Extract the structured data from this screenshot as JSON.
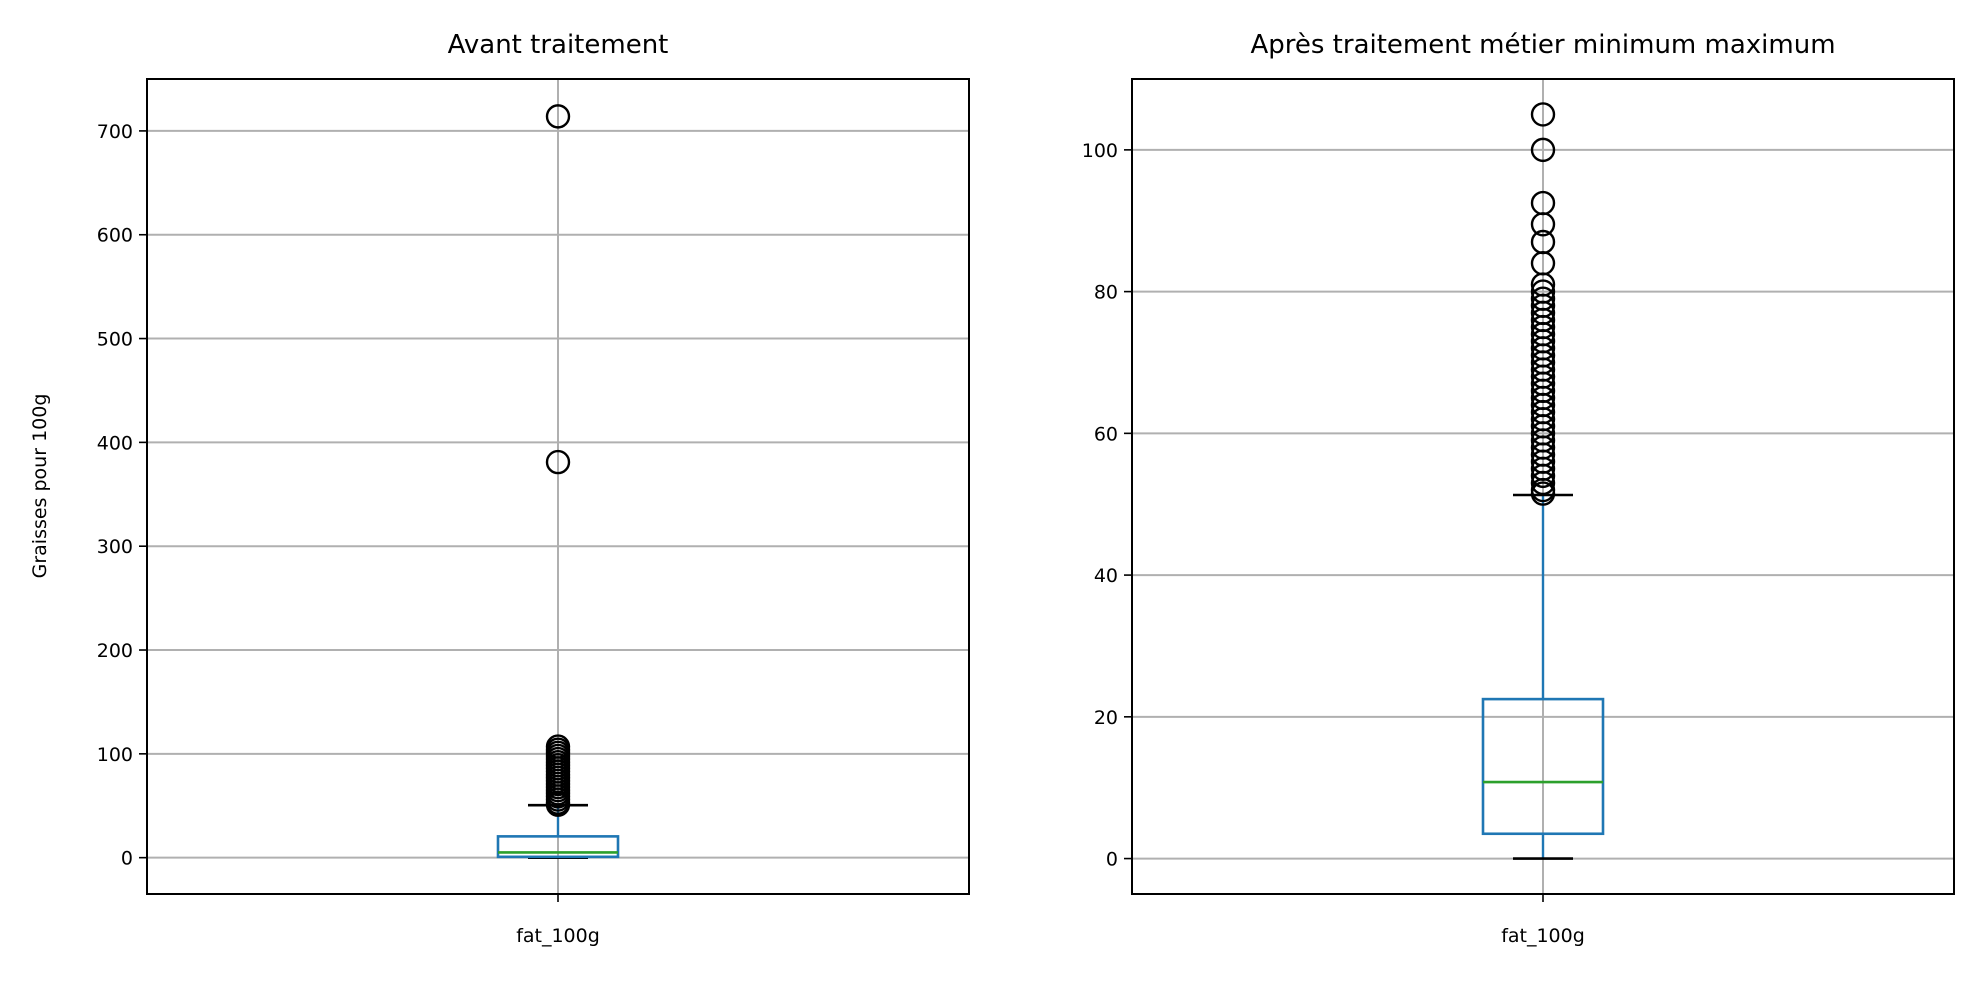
{
  "chart_data": [
    {
      "type": "box",
      "title": "Avant traitement",
      "xlabel": "",
      "ylabel": "Graisses pour 100g",
      "categories": [
        "fat_100g"
      ],
      "ylim": [
        -35,
        750
      ],
      "yticks": [
        0,
        100,
        200,
        300,
        400,
        500,
        600,
        700
      ],
      "grid": true,
      "box": {
        "whisker_low": 0,
        "q1": 0.8,
        "median": 5,
        "q3": 20.5,
        "whisker_high": 50.5
      },
      "outliers": [
        714,
        381,
        107,
        104,
        101,
        98,
        95,
        92,
        89,
        86,
        83,
        80,
        77,
        74,
        71,
        68,
        65,
        62,
        59,
        56,
        53,
        51
      ],
      "colors": {
        "box": "#1f77b4",
        "median": "#2ca02c",
        "caps": "#000000",
        "grid": "#b0b0b0"
      }
    },
    {
      "type": "box",
      "title": "Après traitement métier minimum maximum",
      "xlabel": "",
      "ylabel": "",
      "categories": [
        "fat_100g"
      ],
      "ylim": [
        -5,
        110
      ],
      "yticks": [
        0,
        20,
        40,
        60,
        80,
        100
      ],
      "grid": true,
      "box": {
        "whisker_low": 0,
        "q1": 3.5,
        "median": 10.8,
        "q3": 22.5,
        "whisker_high": 51.3
      },
      "outliers": [
        105,
        100,
        92.5,
        89.5,
        87,
        84,
        81,
        80,
        79,
        78,
        77,
        76,
        75,
        74,
        73,
        72,
        71,
        70,
        69,
        68,
        67,
        66,
        65,
        64,
        63,
        62,
        61,
        60,
        59,
        58,
        57,
        56,
        55,
        54,
        53,
        52,
        51.5
      ],
      "colors": {
        "box": "#1f77b4",
        "median": "#2ca02c",
        "caps": "#000000",
        "grid": "#b0b0b0"
      }
    }
  ]
}
